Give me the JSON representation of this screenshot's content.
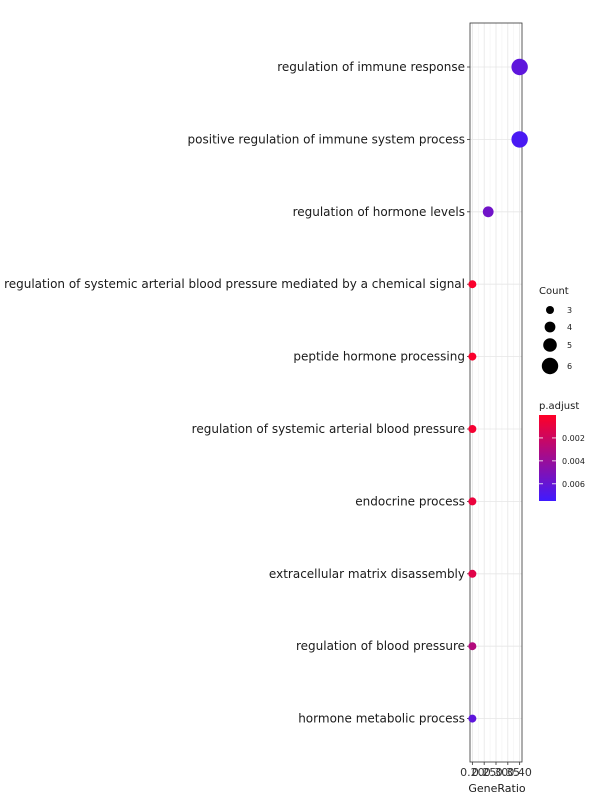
{
  "chart_data": {
    "type": "scatter",
    "xlabel": "GeneRatio",
    "x_ticks": [
      "0.20",
      "0.25",
      "0.30",
      "0.35",
      "0.40"
    ],
    "x_tick_values": [
      0.2,
      0.25,
      0.3,
      0.35,
      0.4
    ],
    "xlim": [
      0.19,
      0.41
    ],
    "categories": [
      "regulation of immune response",
      "positive regulation of immune system process",
      "regulation of hormone levels",
      "regulation of systemic arterial blood pressure mediated by a chemical signal",
      "peptide hormone processing",
      "regulation of systemic arterial blood pressure",
      "endocrine process",
      "extracellular matrix disassembly",
      "regulation of blood pressure",
      "hormone metabolic process"
    ],
    "points": [
      {
        "term": "regulation of immune response",
        "gene_ratio": 0.4,
        "count": 6,
        "p_adjust": 0.0063
      },
      {
        "term": "positive regulation of immune system process",
        "gene_ratio": 0.4,
        "count": 6,
        "p_adjust": 0.0071
      },
      {
        "term": "regulation of hormone levels",
        "gene_ratio": 0.267,
        "count": 4,
        "p_adjust": 0.0056
      },
      {
        "term": "regulation of systemic arterial blood pressure mediated by a chemical signal",
        "gene_ratio": 0.2,
        "count": 3,
        "p_adjust": 0.0002
      },
      {
        "term": "peptide hormone processing",
        "gene_ratio": 0.2,
        "count": 3,
        "p_adjust": 0.0002
      },
      {
        "term": "regulation of systemic arterial blood pressure",
        "gene_ratio": 0.2,
        "count": 3,
        "p_adjust": 0.0004
      },
      {
        "term": "endocrine process",
        "gene_ratio": 0.2,
        "count": 3,
        "p_adjust": 0.0008
      },
      {
        "term": "extracellular matrix disassembly",
        "gene_ratio": 0.2,
        "count": 3,
        "p_adjust": 0.0012
      },
      {
        "term": "regulation of blood pressure",
        "gene_ratio": 0.2,
        "count": 3,
        "p_adjust": 0.003
      },
      {
        "term": "hormone metabolic process",
        "gene_ratio": 0.2,
        "count": 3,
        "p_adjust": 0.0063
      }
    ],
    "legend_count": {
      "title": "Count",
      "values": [
        3,
        4,
        5,
        6
      ],
      "labels": [
        "3",
        "4",
        "5",
        "6"
      ]
    },
    "legend_color": {
      "title": "p.adjust",
      "range": [
        0,
        0.0075
      ],
      "tick_values": [
        0.002,
        0.004,
        0.006
      ],
      "tick_labels": [
        "0.002",
        "0.004",
        "0.006"
      ],
      "low_color": "#ff0026",
      "high_color": "#3f1aff"
    },
    "legend_position": "right",
    "grid": true
  }
}
